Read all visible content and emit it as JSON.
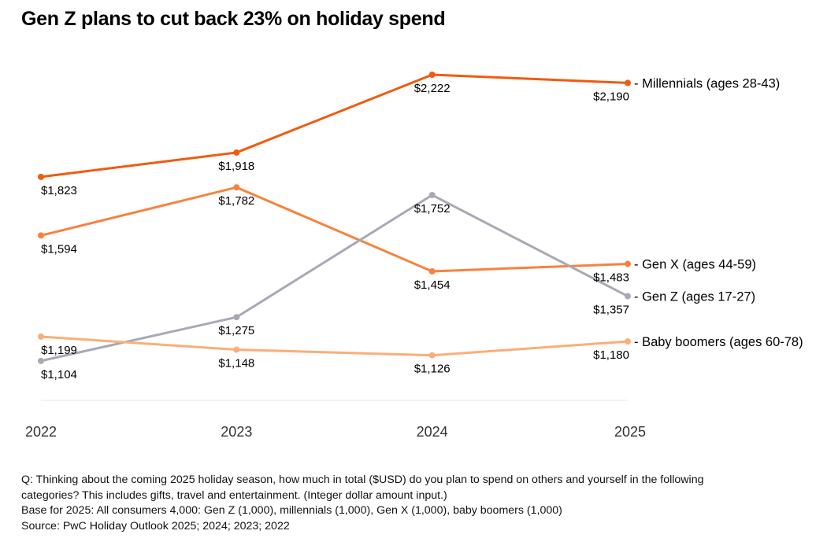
{
  "chart_data": {
    "type": "line",
    "title": "Gen Z plans to cut back 23% on holiday spend",
    "xlabel": "",
    "ylabel": "",
    "x": [
      "2022",
      "2023",
      "2024",
      "2025"
    ],
    "ylim": [
      950,
      2222
    ],
    "grid": false,
    "legend": "end-of-line labels (right)",
    "series": [
      {
        "name": "Millennials (ages 28-43)",
        "color": "#f25a0f",
        "values": [
          1823,
          1918,
          2222,
          2190
        ],
        "labels": [
          "$1,823",
          "$1,918",
          "$2,222",
          "$2,190"
        ]
      },
      {
        "name": "Gen X (ages 44-59)",
        "color": "#f7823e",
        "values": [
          1594,
          1782,
          1454,
          1483
        ],
        "labels": [
          "$1,594",
          "$1,782",
          "$1,454",
          "$1,483"
        ]
      },
      {
        "name": "Gen Z (ages 17-27)",
        "color": "#a7a9b4",
        "values": [
          1104,
          1275,
          1752,
          1357
        ],
        "labels": [
          "$1,104",
          "$1,275",
          "$1,752",
          "$1,357"
        ]
      },
      {
        "name": "Baby boomers (ages 60-78)",
        "color": "#fbae77",
        "values": [
          1199,
          1148,
          1126,
          1180
        ],
        "labels": [
          "$1,199",
          "$1,148",
          "$1,126",
          "$1,180"
        ]
      }
    ]
  },
  "notes": [
    "Q: Thinking about the coming 2025 holiday season, how much in total ($USD) do you plan to spend on others and yourself in the following",
    "categories? This includes gifts, travel and entertainment. (Integer dollar amount input.)",
    "Base for 2025: All consumers 4,000: Gen Z (1,000), millennials (1,000), Gen X (1,000), baby boomers (1,000)",
    "Source: PwC Holiday Outlook 2025; 2024; 2023; 2022"
  ]
}
